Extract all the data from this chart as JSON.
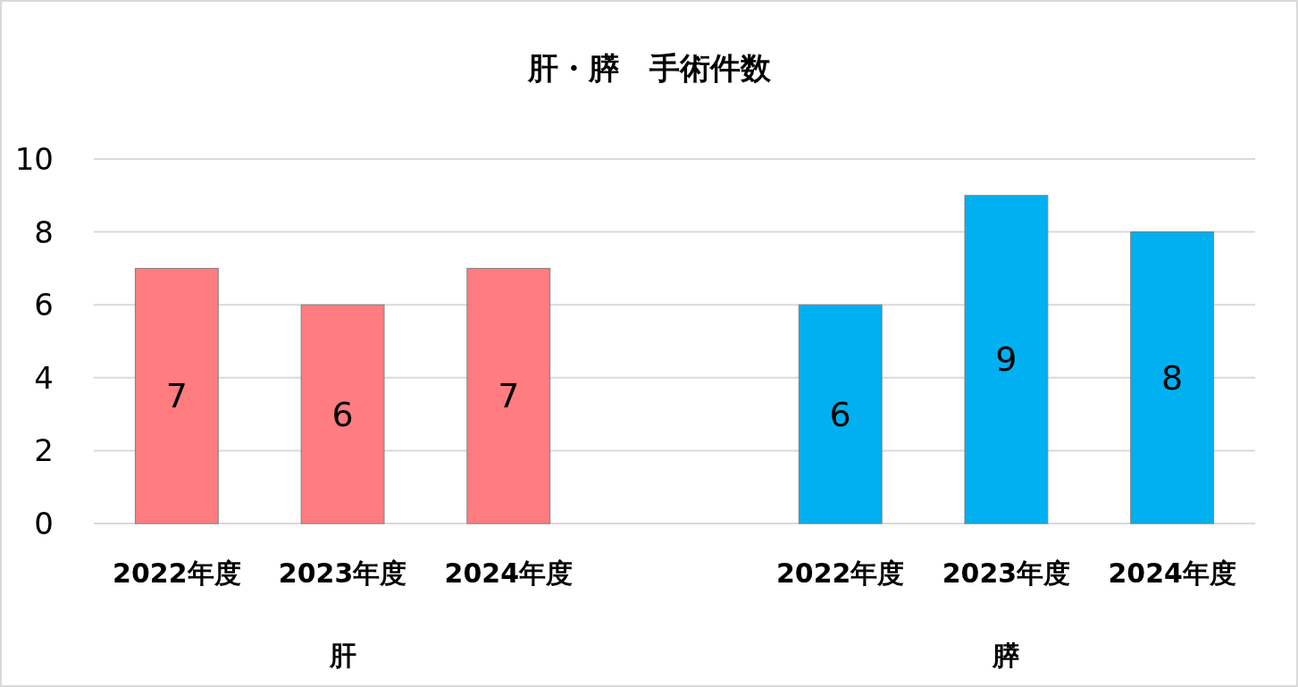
{
  "chart_data": {
    "type": "bar",
    "title": "肝・膵　手術件数",
    "categories": [
      "2022年度",
      "2023年度",
      "2024年度",
      null,
      "2022年度",
      "2023年度",
      "2024年度"
    ],
    "series": [
      {
        "color": "#ff7c80",
        "values": [
          7,
          6,
          7,
          null,
          null,
          null,
          null
        ]
      },
      {
        "color": "#00b0f0",
        "values": [
          null,
          null,
          null,
          null,
          6,
          9,
          8
        ]
      }
    ],
    "annotations": [
      "肝",
      "膵"
    ],
    "ylim": [
      0,
      10
    ],
    "yticks": [
      0,
      2,
      4,
      6,
      8,
      10
    ],
    "grid": "y",
    "data_labels": true
  }
}
